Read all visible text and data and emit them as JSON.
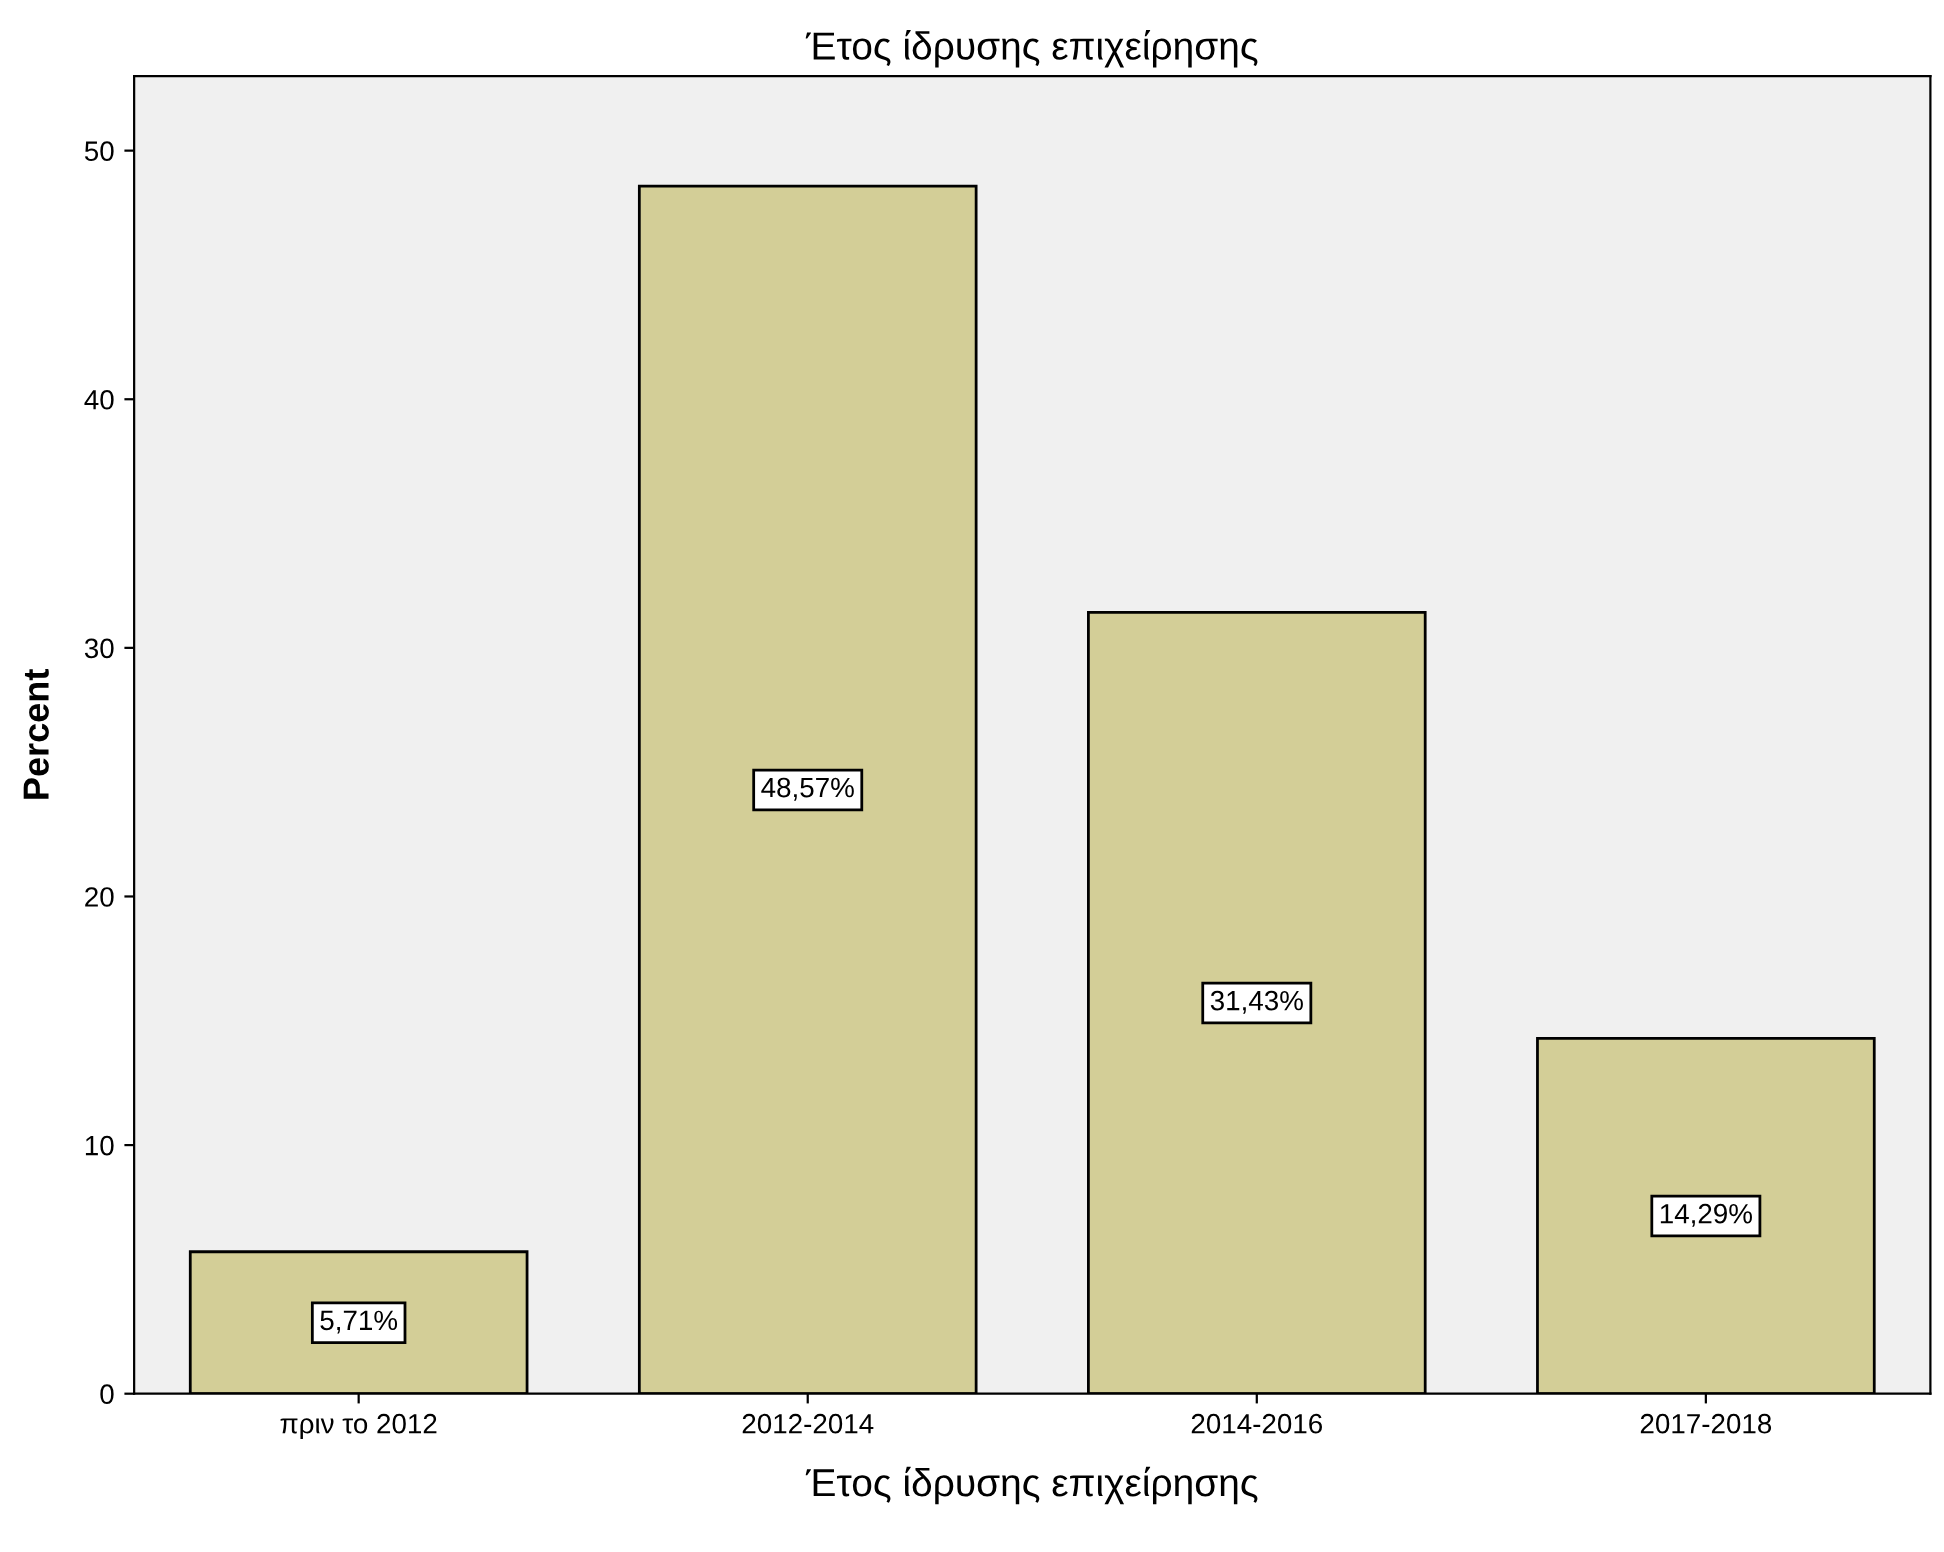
{
  "chart_data": {
    "type": "bar",
    "title": "Έτος ίδρυσης επιχείρησης",
    "xlabel": "Έτος ίδρυσης επιχείρησης",
    "ylabel": "Percent",
    "categories": [
      "πριν το 2012",
      "2012-2014",
      "2014-2016",
      "2017-2018"
    ],
    "values": [
      5.71,
      48.57,
      31.43,
      14.29
    ],
    "value_labels": [
      "5,71%",
      "48,57%",
      "31,43%",
      "14,29%"
    ],
    "color": "#d3ce97",
    "ylim": [
      0,
      53
    ],
    "yticks": [
      0,
      10,
      20,
      30,
      40,
      50
    ],
    "grid": false,
    "legend": false
  }
}
